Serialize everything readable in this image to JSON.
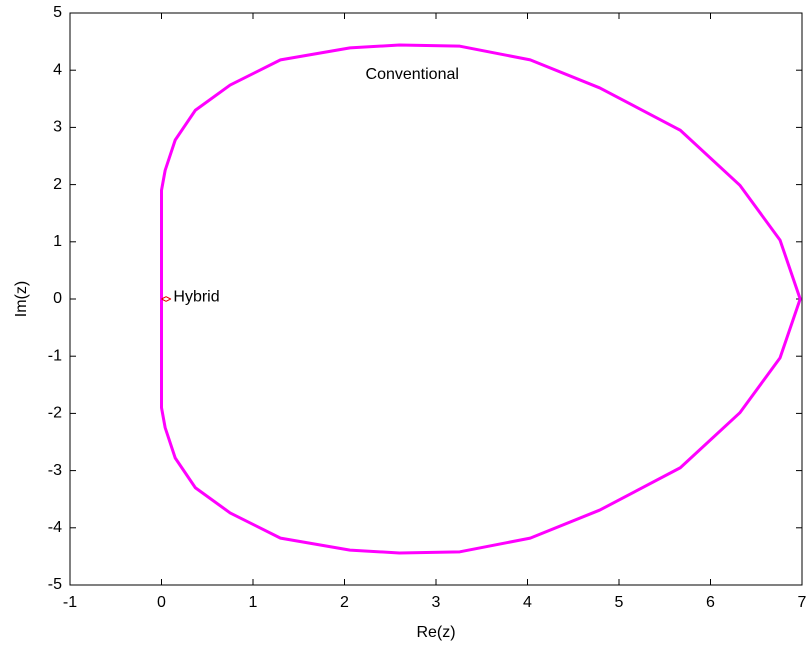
{
  "chart_data": {
    "type": "line",
    "xlabel": "Re(z)",
    "ylabel": "Im(z)",
    "xlim": [
      -1,
      7
    ],
    "ylim": [
      -5,
      5
    ],
    "xticks": [
      -1,
      0,
      1,
      2,
      3,
      4,
      5,
      6,
      7
    ],
    "yticks": [
      -5,
      -4,
      -3,
      -2,
      -1,
      0,
      1,
      2,
      3,
      4,
      5
    ],
    "series": [
      {
        "color": "#ff00ff",
        "x": [
          0,
          0.0,
          0.0,
          0.04,
          0.15,
          0.37,
          0.75,
          1.3,
          2.06,
          2.6,
          3.26,
          4.03,
          4.79,
          5.67,
          6.32,
          6.76,
          6.98,
          6.76,
          6.32,
          5.67,
          4.79,
          4.03,
          3.26,
          2.6,
          2.06,
          1.3,
          0.75,
          0.37,
          0.15,
          0.04,
          0.0,
          0.0,
          0
        ],
        "values": [
          0,
          1.03,
          1.9,
          2.25,
          2.78,
          3.3,
          3.74,
          4.18,
          4.39,
          4.44,
          4.42,
          4.18,
          3.69,
          2.95,
          1.99,
          1.03,
          0,
          -1.03,
          -1.99,
          -2.95,
          -3.69,
          -4.18,
          -4.42,
          -4.44,
          -4.39,
          -4.18,
          -3.74,
          -3.3,
          -2.78,
          -2.25,
          -1.9,
          -1.03,
          0
        ]
      },
      {
        "color": "#e00000",
        "x": [
          0,
          0.05,
          0.1,
          0.05,
          0
        ],
        "values": [
          0,
          0.04,
          0,
          -0.04,
          0
        ]
      }
    ],
    "annotations": [
      {
        "text": "Conventional",
        "x": 2.23,
        "y": 3.92
      },
      {
        "text": "Hybrid",
        "x": 0.13,
        "y": 0.03
      }
    ]
  }
}
